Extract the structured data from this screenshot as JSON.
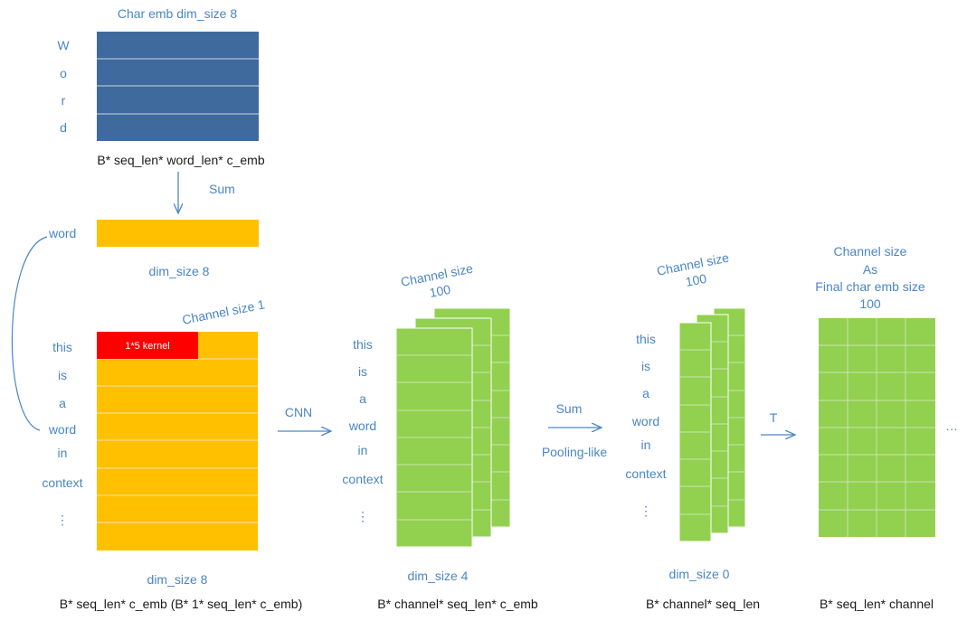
{
  "colors": {
    "blue_block": "#3f6a9e",
    "yellow_block": "#ffc000",
    "red_kernel": "#ff0000",
    "green_block": "#92d050",
    "label_blue": "#4a86c5",
    "text_dark": "#1a1a1a"
  },
  "char_emb": {
    "title": "Char emb  dim_size 8",
    "word_letters": [
      "W",
      "o",
      "r",
      "d"
    ],
    "shape": "B* seq_len* word_len* c_emb"
  },
  "sum_arrow": {
    "label": "Sum"
  },
  "word_vec": {
    "label": "word",
    "dim": "dim_size 8"
  },
  "input": {
    "channel": "Channel size 1",
    "kernel": "1*5 kernel",
    "tokens": [
      "this",
      "is",
      "a",
      "word",
      "in",
      "context",
      "⋮"
    ],
    "dim": "dim_size 8",
    "shape": "B* seq_len* c_emb (B* 1* seq_len* c_emb)"
  },
  "cnn_arrow": {
    "label": "CNN"
  },
  "cnn_out": {
    "channel": [
      "Channel size",
      "100"
    ],
    "tokens": [
      "this",
      "is",
      "a",
      "word",
      "in",
      "context",
      "⋮"
    ],
    "dim": "dim_size 4",
    "shape": "B* channel* seq_len* c_emb"
  },
  "pool_arrow": {
    "label1": "Sum",
    "label2": "Pooling-like"
  },
  "pool_out": {
    "channel": [
      "Channel size",
      "100"
    ],
    "tokens": [
      "this",
      "is",
      "a",
      "word",
      "in",
      "context",
      "⋮"
    ],
    "dim": "dim_size 0",
    "shape": "B* channel* seq_len"
  },
  "t_arrow": {
    "label": "T"
  },
  "final": {
    "channel": [
      "Channel size",
      "As",
      "Final char emb size",
      "100"
    ],
    "shape": "B* seq_len* channel",
    "ellipsis": "…"
  }
}
